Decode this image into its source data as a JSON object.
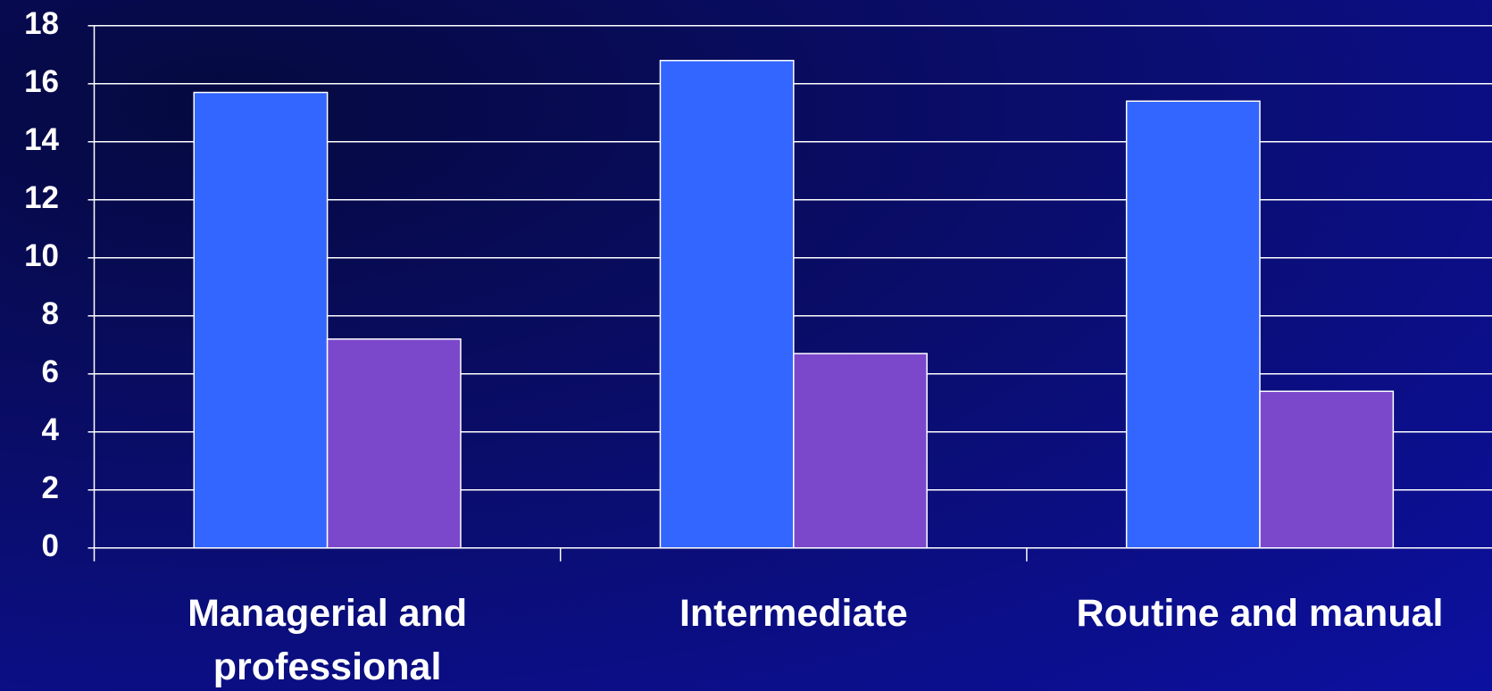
{
  "chart_data": {
    "type": "bar",
    "categories": [
      "Managerial and professional",
      "Intermediate",
      "Routine and manual"
    ],
    "series": [
      {
        "color": "#3366ff",
        "values": [
          15.7,
          16.8,
          15.4
        ]
      },
      {
        "color": "#7b48cc",
        "values": [
          7.2,
          6.7,
          5.4
        ]
      }
    ],
    "ylim": [
      0,
      18
    ],
    "yticks": [
      0,
      2,
      4,
      6,
      8,
      10,
      12,
      14,
      16,
      18
    ],
    "grid": true
  }
}
